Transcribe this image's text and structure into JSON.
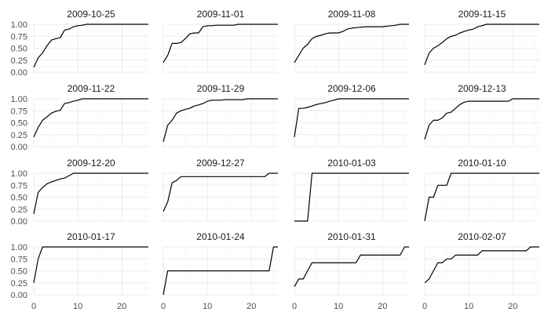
{
  "chart_data": {
    "type": "line",
    "layout": "facet-grid",
    "facet_columns": 4,
    "facet_rows": 4,
    "xlim": [
      0,
      26
    ],
    "ylim": [
      0,
      1
    ],
    "x_ticks": [
      0,
      10,
      20
    ],
    "y_ticks": [
      0,
      0.25,
      0.5,
      0.75,
      1
    ],
    "y_tick_labels": [
      "0.00",
      "0.25",
      "0.50",
      "0.75",
      "1.00"
    ],
    "x_tick_labels": [
      "0",
      "10",
      "20"
    ],
    "grid": true,
    "xlabel": "",
    "ylabel": "",
    "line_color": "#000000",
    "facets": [
      {
        "title": "2009-10-25",
        "x": [
          0,
          1,
          2,
          3,
          4,
          5,
          6,
          7,
          8,
          9,
          10,
          11,
          12,
          13,
          14,
          15,
          16,
          17,
          18,
          19,
          20,
          21,
          22,
          23,
          24,
          25,
          26
        ],
        "y": [
          0.1,
          0.3,
          0.4,
          0.55,
          0.67,
          0.7,
          0.72,
          0.88,
          0.9,
          0.95,
          0.97,
          0.98,
          1,
          1,
          1,
          1,
          1,
          1,
          1,
          1,
          1,
          1,
          1,
          1,
          1,
          1,
          1
        ]
      },
      {
        "title": "2009-11-01",
        "x": [
          0,
          1,
          2,
          3,
          4,
          5,
          6,
          7,
          8,
          9,
          10,
          11,
          12,
          13,
          14,
          15,
          16,
          17,
          18,
          19,
          20,
          21,
          22,
          23,
          24,
          25,
          26
        ],
        "y": [
          0.2,
          0.35,
          0.6,
          0.6,
          0.62,
          0.7,
          0.8,
          0.82,
          0.82,
          0.95,
          0.97,
          0.97,
          0.98,
          0.98,
          0.98,
          0.98,
          0.98,
          1,
          1,
          1,
          1,
          1,
          1,
          1,
          1,
          1,
          1
        ]
      },
      {
        "title": "2009-11-08",
        "x": [
          0,
          1,
          2,
          3,
          4,
          5,
          6,
          7,
          8,
          9,
          10,
          11,
          12,
          13,
          14,
          15,
          16,
          17,
          18,
          19,
          20,
          21,
          22,
          23,
          24,
          25,
          26
        ],
        "y": [
          0.2,
          0.35,
          0.5,
          0.58,
          0.7,
          0.75,
          0.77,
          0.8,
          0.82,
          0.82,
          0.82,
          0.85,
          0.9,
          0.92,
          0.93,
          0.94,
          0.95,
          0.95,
          0.95,
          0.95,
          0.95,
          0.96,
          0.97,
          0.98,
          1,
          1,
          1
        ]
      },
      {
        "title": "2009-11-15",
        "x": [
          0,
          1,
          2,
          3,
          4,
          5,
          6,
          7,
          8,
          9,
          10,
          11,
          12,
          13,
          14,
          15,
          16,
          17,
          18,
          19,
          20,
          21,
          22,
          23,
          24,
          25,
          26
        ],
        "y": [
          0.15,
          0.4,
          0.5,
          0.55,
          0.62,
          0.7,
          0.75,
          0.77,
          0.82,
          0.85,
          0.88,
          0.9,
          0.95,
          0.97,
          1,
          1,
          1,
          1,
          1,
          1,
          1,
          1,
          1,
          1,
          1,
          1,
          1
        ]
      },
      {
        "title": "2009-11-22",
        "x": [
          0,
          1,
          2,
          3,
          4,
          5,
          6,
          7,
          8,
          9,
          10,
          11,
          12,
          13,
          14,
          15,
          16,
          17,
          18,
          19,
          20,
          21,
          22,
          23,
          24,
          25,
          26
        ],
        "y": [
          0.2,
          0.4,
          0.55,
          0.62,
          0.7,
          0.74,
          0.76,
          0.9,
          0.92,
          0.95,
          0.97,
          1,
          1,
          1,
          1,
          1,
          1,
          1,
          1,
          1,
          1,
          1,
          1,
          1,
          1,
          1,
          1
        ]
      },
      {
        "title": "2009-11-29",
        "x": [
          0,
          1,
          2,
          3,
          4,
          5,
          6,
          7,
          8,
          9,
          10,
          11,
          12,
          13,
          14,
          15,
          16,
          17,
          18,
          19,
          20,
          21,
          22,
          23,
          24,
          25,
          26
        ],
        "y": [
          0.1,
          0.45,
          0.55,
          0.7,
          0.75,
          0.78,
          0.8,
          0.85,
          0.87,
          0.9,
          0.95,
          0.97,
          0.97,
          0.97,
          0.98,
          0.98,
          0.98,
          0.98,
          0.98,
          1,
          1,
          1,
          1,
          1,
          1,
          1,
          1
        ]
      },
      {
        "title": "2009-12-06",
        "x": [
          0,
          1,
          2,
          3,
          4,
          5,
          6,
          7,
          8,
          9,
          10,
          11,
          12,
          13,
          14,
          15,
          16,
          17,
          18,
          19,
          20,
          21,
          22,
          23,
          24,
          25,
          26
        ],
        "y": [
          0.2,
          0.8,
          0.8,
          0.82,
          0.85,
          0.88,
          0.9,
          0.92,
          0.95,
          0.97,
          1,
          1,
          1,
          1,
          1,
          1,
          1,
          1,
          1,
          1,
          1,
          1,
          1,
          1,
          1,
          1,
          1
        ]
      },
      {
        "title": "2009-12-13",
        "x": [
          0,
          1,
          2,
          3,
          4,
          5,
          6,
          7,
          8,
          9,
          10,
          11,
          12,
          13,
          14,
          15,
          16,
          17,
          18,
          19,
          20,
          21,
          22,
          23,
          24,
          25,
          26
        ],
        "y": [
          0.15,
          0.45,
          0.55,
          0.55,
          0.6,
          0.7,
          0.72,
          0.8,
          0.88,
          0.93,
          0.95,
          0.95,
          0.95,
          0.95,
          0.95,
          0.95,
          0.95,
          0.95,
          0.95,
          0.95,
          1,
          1,
          1,
          1,
          1,
          1,
          1
        ]
      },
      {
        "title": "2009-12-20",
        "x": [
          0,
          1,
          2,
          3,
          4,
          5,
          6,
          7,
          8,
          9,
          10,
          11,
          12,
          13,
          14,
          15,
          16,
          17,
          18,
          19,
          20,
          21,
          22,
          23,
          24,
          25,
          26
        ],
        "y": [
          0.15,
          0.6,
          0.7,
          0.78,
          0.82,
          0.85,
          0.88,
          0.9,
          0.95,
          1,
          1,
          1,
          1,
          1,
          1,
          1,
          1,
          1,
          1,
          1,
          1,
          1,
          1,
          1,
          1,
          1,
          1
        ]
      },
      {
        "title": "2009-12-27",
        "x": [
          0,
          1,
          2,
          3,
          4,
          5,
          6,
          7,
          8,
          9,
          10,
          11,
          12,
          13,
          14,
          15,
          16,
          17,
          18,
          19,
          20,
          21,
          22,
          23,
          24,
          25,
          26
        ],
        "y": [
          0.2,
          0.4,
          0.8,
          0.85,
          0.93,
          0.93,
          0.93,
          0.93,
          0.93,
          0.93,
          0.93,
          0.93,
          0.93,
          0.93,
          0.93,
          0.93,
          0.93,
          0.93,
          0.93,
          0.93,
          0.93,
          0.93,
          0.93,
          0.93,
          1,
          1,
          1
        ]
      },
      {
        "title": "2010-01-03",
        "x": [
          0,
          1,
          2,
          3,
          4,
          5,
          6,
          7,
          8,
          9,
          10,
          11,
          12,
          13,
          14,
          15,
          16,
          17,
          18,
          19,
          20,
          21,
          22,
          23,
          24,
          25,
          26
        ],
        "y": [
          0,
          0,
          0,
          0,
          1,
          1,
          1,
          1,
          1,
          1,
          1,
          1,
          1,
          1,
          1,
          1,
          1,
          1,
          1,
          1,
          1,
          1,
          1,
          1,
          1,
          1,
          1
        ]
      },
      {
        "title": "2010-01-10",
        "x": [
          0,
          1,
          2,
          3,
          4,
          5,
          6,
          7,
          8,
          9,
          10,
          11,
          12,
          13,
          14,
          15,
          16,
          17,
          18,
          19,
          20,
          21,
          22,
          23,
          24,
          25,
          26
        ],
        "y": [
          0,
          0.5,
          0.5,
          0.75,
          0.75,
          0.75,
          1,
          1,
          1,
          1,
          1,
          1,
          1,
          1,
          1,
          1,
          1,
          1,
          1,
          1,
          1,
          1,
          1,
          1,
          1,
          1,
          1
        ]
      },
      {
        "title": "2010-01-17",
        "x": [
          0,
          1,
          2,
          3,
          4,
          5,
          6,
          7,
          8,
          9,
          10,
          11,
          12,
          13,
          14,
          15,
          16,
          17,
          18,
          19,
          20,
          21,
          22,
          23,
          24,
          25,
          26
        ],
        "y": [
          0.25,
          0.75,
          1,
          1,
          1,
          1,
          1,
          1,
          1,
          1,
          1,
          1,
          1,
          1,
          1,
          1,
          1,
          1,
          1,
          1,
          1,
          1,
          1,
          1,
          1,
          1,
          1
        ]
      },
      {
        "title": "2010-01-24",
        "x": [
          0,
          1,
          2,
          3,
          4,
          5,
          6,
          7,
          8,
          9,
          10,
          11,
          12,
          13,
          14,
          15,
          16,
          17,
          18,
          19,
          20,
          21,
          22,
          23,
          24,
          25,
          26
        ],
        "y": [
          0,
          0.5,
          0.5,
          0.5,
          0.5,
          0.5,
          0.5,
          0.5,
          0.5,
          0.5,
          0.5,
          0.5,
          0.5,
          0.5,
          0.5,
          0.5,
          0.5,
          0.5,
          0.5,
          0.5,
          0.5,
          0.5,
          0.5,
          0.5,
          0.5,
          1,
          1
        ]
      },
      {
        "title": "2010-01-31",
        "x": [
          0,
          1,
          2,
          3,
          4,
          5,
          6,
          7,
          8,
          9,
          10,
          11,
          12,
          13,
          14,
          15,
          16,
          17,
          18,
          19,
          20,
          21,
          22,
          23,
          24,
          25,
          26
        ],
        "y": [
          0.17,
          0.33,
          0.33,
          0.5,
          0.67,
          0.67,
          0.67,
          0.67,
          0.67,
          0.67,
          0.67,
          0.67,
          0.67,
          0.67,
          0.67,
          0.83,
          0.83,
          0.83,
          0.83,
          0.83,
          0.83,
          0.83,
          0.83,
          0.83,
          0.83,
          1,
          1
        ]
      },
      {
        "title": "2010-02-07",
        "x": [
          0,
          1,
          2,
          3,
          4,
          5,
          6,
          7,
          8,
          9,
          10,
          11,
          12,
          13,
          14,
          15,
          16,
          17,
          18,
          19,
          20,
          21,
          22,
          23,
          24,
          25,
          26
        ],
        "y": [
          0.25,
          0.33,
          0.5,
          0.67,
          0.67,
          0.75,
          0.75,
          0.83,
          0.83,
          0.83,
          0.83,
          0.83,
          0.83,
          0.92,
          0.92,
          0.92,
          0.92,
          0.92,
          0.92,
          0.92,
          0.92,
          0.92,
          0.92,
          0.92,
          1,
          1,
          1
        ]
      }
    ]
  }
}
